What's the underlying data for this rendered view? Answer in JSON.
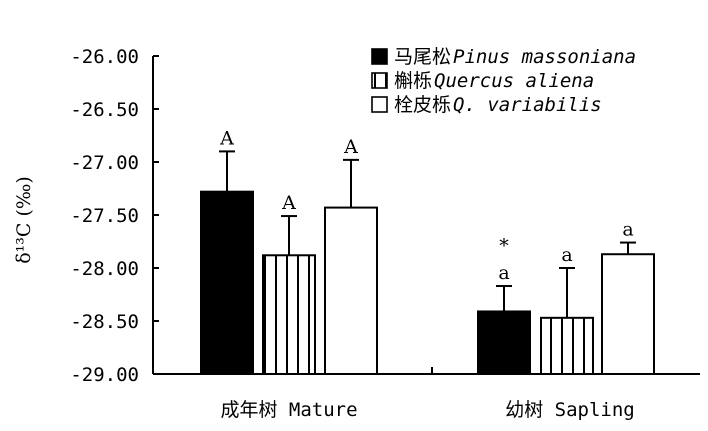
{
  "chart_data": {
    "type": "bar",
    "ylabel": "δ¹³C (‰)",
    "ylim": [
      -29.0,
      -26.0
    ],
    "y_ticks": [
      "-26.00",
      "-26.50",
      "-27.00",
      "-27.50",
      "-28.00",
      "-28.50",
      "-29.00"
    ],
    "y_tick_values": [
      -26.0,
      -26.5,
      -27.0,
      -27.5,
      -28.0,
      -28.5,
      -29.0
    ],
    "bar_base": -29.0,
    "categories": [
      "成年树 Mature",
      "幼树 Sapling"
    ],
    "series": [
      {
        "name_cn": "马尾松",
        "name_latin": "Pinus massoniana",
        "fill": "solid-black",
        "values": [
          -27.28,
          -28.41
        ],
        "error": [
          0.38,
          0.24
        ],
        "letters": [
          "A",
          "a"
        ]
      },
      {
        "name_cn": "槲栎",
        "name_latin": "Quercus aliena",
        "fill": "vertical-stripes",
        "values": [
          -27.88,
          -28.47
        ],
        "error": [
          0.37,
          0.47
        ],
        "letters": [
          "A",
          "a"
        ]
      },
      {
        "name_cn": "栓皮栎",
        "name_latin": "Q. variabilis",
        "fill": "white",
        "values": [
          -27.43,
          -27.87
        ],
        "error": [
          0.45,
          0.11
        ],
        "letters": [
          "A",
          "a"
        ]
      }
    ],
    "annotations": [
      {
        "text": "*",
        "category_index": 1,
        "series_index": 0
      }
    ],
    "legend_position": "top-right",
    "grid": false
  }
}
